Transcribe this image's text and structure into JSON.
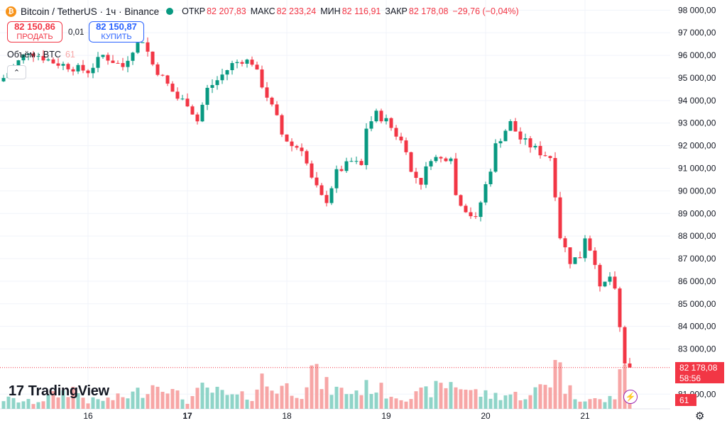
{
  "legend": {
    "symbol": "Bitcoin / TetherUS · 1ч · Binance",
    "open_label": "ОТКР",
    "open": "82 207,83",
    "high_label": "МАКС",
    "high": "82 233,24",
    "low_label": "МИН",
    "low": "82 116,91",
    "close_label": "ЗАКР",
    "close": "82 178,08",
    "change": "−29,76 (−0,04%)"
  },
  "trade": {
    "sell_price": "82 150,86",
    "sell_label": "ПРОДАТЬ",
    "spread": "0,01",
    "buy_price": "82 150,87",
    "buy_label": "КУПИТЬ"
  },
  "volume_pane": {
    "label": "Объём · BTC",
    "value": "61"
  },
  "logo": {
    "text": "TradingView",
    "mark": "17"
  },
  "price_tag": {
    "price": "82 178,08",
    "countdown": "58:56"
  },
  "volume_tag": "61",
  "icons": {
    "coin": "bitcoin-icon",
    "status": "market-open-dot",
    "collapse": "chevron-up-icon",
    "lightning": "lightning-icon",
    "settings": "gear-icon"
  },
  "colors": {
    "up": "#089981",
    "down": "#f23645",
    "up_volume": "#8fd4c8",
    "down_volume": "#f7a6a6",
    "grid": "#f0f3fa"
  },
  "chart_data": {
    "type": "candlestick",
    "y_tick_labels": [
      "98 000,00",
      "97 000,00",
      "96 000,00",
      "95 000,00",
      "94 000,00",
      "93 000,00",
      "92 000,00",
      "91 000,00",
      "90 000,00",
      "89 000,00",
      "88 000,00",
      "87 000,00",
      "86 000,00",
      "85 000,00",
      "84 000,00",
      "83 000,00",
      "81 000,00"
    ],
    "y_ticks": [
      98000,
      97000,
      96000,
      95000,
      94000,
      93000,
      92000,
      91000,
      90000,
      89000,
      88000,
      87000,
      86000,
      85000,
      84000,
      83000,
      81000
    ],
    "ylim": [
      80350,
      98450
    ],
    "x_tick_labels": [
      "16",
      "17",
      "18",
      "19",
      "20",
      "21"
    ],
    "x_ticks_bar_index": [
      17,
      37,
      57,
      77,
      97,
      117
    ],
    "x_label_bold": [
      false,
      true,
      false,
      false,
      false,
      false
    ],
    "bars": 127,
    "ohlc_anchors": [
      [
        0,
        95000
      ],
      [
        5,
        96200
      ],
      [
        10,
        95700
      ],
      [
        15,
        95400
      ],
      [
        17,
        95300
      ],
      [
        20,
        96000
      ],
      [
        24,
        95500
      ],
      [
        26,
        96300
      ],
      [
        28,
        96700
      ],
      [
        30,
        95600
      ],
      [
        33,
        94700
      ],
      [
        35,
        94100
      ],
      [
        37,
        93900
      ],
      [
        39,
        93100
      ],
      [
        41,
        94500
      ],
      [
        43,
        94900
      ],
      [
        46,
        95600
      ],
      [
        48,
        95800
      ],
      [
        50,
        95700
      ],
      [
        53,
        94200
      ],
      [
        54,
        93700
      ],
      [
        55,
        93200
      ],
      [
        56,
        92500
      ],
      [
        58,
        92000
      ],
      [
        60,
        91900
      ],
      [
        62,
        90500
      ],
      [
        64,
        89700
      ],
      [
        65,
        89600
      ],
      [
        67,
        90800
      ],
      [
        70,
        91300
      ],
      [
        72,
        91100
      ],
      [
        73,
        92800
      ],
      [
        75,
        93400
      ],
      [
        77,
        93100
      ],
      [
        79,
        92500
      ],
      [
        81,
        91900
      ],
      [
        82,
        90800
      ],
      [
        84,
        90400
      ],
      [
        86,
        91500
      ],
      [
        88,
        91400
      ],
      [
        90,
        91600
      ],
      [
        91,
        89800
      ],
      [
        93,
        89200
      ],
      [
        95,
        88700
      ],
      [
        96,
        89500
      ],
      [
        98,
        91000
      ],
      [
        99,
        92000
      ],
      [
        101,
        92700
      ],
      [
        102,
        93000
      ],
      [
        104,
        92300
      ],
      [
        106,
        92000
      ],
      [
        108,
        91700
      ],
      [
        110,
        91500
      ],
      [
        111,
        89900
      ],
      [
        112,
        88000
      ],
      [
        114,
        86900
      ],
      [
        116,
        87100
      ],
      [
        117,
        88000
      ],
      [
        119,
        86900
      ],
      [
        120,
        85600
      ],
      [
        122,
        86200
      ],
      [
        123,
        85500
      ],
      [
        124,
        83900
      ],
      [
        125,
        82400
      ],
      [
        126,
        82178
      ]
    ],
    "current_price": 82178.08,
    "volume": {
      "max": 100,
      "anchors": [
        [
          0,
          15
        ],
        [
          6,
          10
        ],
        [
          10,
          20
        ],
        [
          14,
          30
        ],
        [
          17,
          12
        ],
        [
          22,
          15
        ],
        [
          25,
          20
        ],
        [
          28,
          28
        ],
        [
          32,
          45
        ],
        [
          34,
          25
        ],
        [
          37,
          12
        ],
        [
          40,
          30
        ],
        [
          43,
          25
        ],
        [
          46,
          18
        ],
        [
          50,
          20
        ],
        [
          52,
          45
        ],
        [
          54,
          30
        ],
        [
          56,
          35
        ],
        [
          60,
          25
        ],
        [
          62,
          60
        ],
        [
          64,
          40
        ],
        [
          66,
          30
        ],
        [
          70,
          25
        ],
        [
          74,
          35
        ],
        [
          78,
          22
        ],
        [
          82,
          18
        ],
        [
          86,
          28
        ],
        [
          90,
          40
        ],
        [
          92,
          35
        ],
        [
          95,
          25
        ],
        [
          98,
          20
        ],
        [
          102,
          22
        ],
        [
          106,
          18
        ],
        [
          108,
          35
        ],
        [
          110,
          42
        ],
        [
          111,
          95
        ],
        [
          112,
          60
        ],
        [
          113,
          35
        ],
        [
          115,
          20
        ],
        [
          118,
          15
        ],
        [
          121,
          12
        ],
        [
          123,
          20
        ],
        [
          124,
          70
        ],
        [
          125,
          50
        ],
        [
          126,
          20
        ]
      ]
    }
  }
}
